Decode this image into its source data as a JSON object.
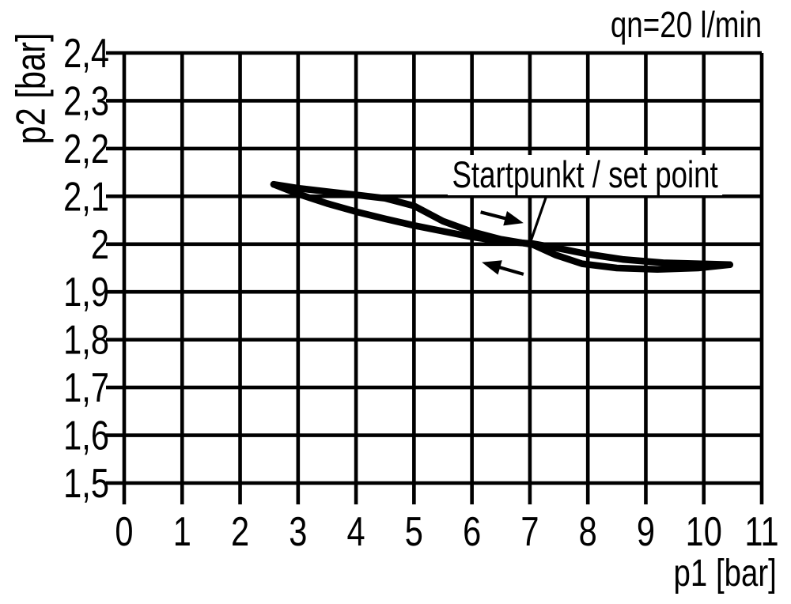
{
  "page": {
    "background_color": "#ffffff",
    "ink_color": "#000000"
  },
  "chart_data": {
    "type": "line",
    "annotation_top_right": "qn=20 l/min",
    "xlabel": "p1 [bar]",
    "ylabel": "p2 [bar]",
    "xlim": [
      0,
      11
    ],
    "ylim": [
      1.5,
      2.4
    ],
    "grid": true,
    "legend": "none",
    "x_ticks": {
      "values": [
        0,
        1,
        2,
        3,
        4,
        5,
        6,
        7,
        8,
        9,
        10,
        11
      ],
      "labels": [
        "0",
        "1",
        "2",
        "3",
        "4",
        "5",
        "6",
        "7",
        "8",
        "9",
        "10",
        "11"
      ]
    },
    "y_ticks": {
      "values": [
        2.4,
        2.3,
        2.2,
        2.1,
        2.0,
        1.9,
        1.8,
        1.7,
        1.6,
        1.5
      ],
      "labels": [
        "2,4",
        "2,3",
        "2,2",
        "2,1",
        "2",
        "1,9",
        "1,8",
        "1,7",
        "1,6",
        "1,5"
      ]
    },
    "series": [
      {
        "name": "hysteresis-branch-pressure-rising",
        "points": [
          [
            2.58,
            2.125
          ],
          [
            3.0,
            2.117
          ],
          [
            3.5,
            2.11
          ],
          [
            4.0,
            2.103
          ],
          [
            4.5,
            2.096
          ],
          [
            5.0,
            2.08
          ],
          [
            5.5,
            2.048
          ],
          [
            6.0,
            2.026
          ],
          [
            6.5,
            2.01
          ],
          [
            7.05,
            1.999
          ],
          [
            7.45,
            1.977
          ],
          [
            7.9,
            1.959
          ],
          [
            8.5,
            1.95
          ],
          [
            9.2,
            1.947
          ],
          [
            9.9,
            1.95
          ],
          [
            10.45,
            1.957
          ]
        ]
      },
      {
        "name": "hysteresis-branch-pressure-falling",
        "points": [
          [
            2.58,
            2.125
          ],
          [
            3.0,
            2.105
          ],
          [
            3.5,
            2.085
          ],
          [
            4.0,
            2.068
          ],
          [
            4.5,
            2.053
          ],
          [
            5.0,
            2.039
          ],
          [
            5.5,
            2.027
          ],
          [
            6.0,
            2.015
          ],
          [
            6.5,
            2.006
          ],
          [
            7.05,
            2.001
          ],
          [
            7.5,
            1.991
          ],
          [
            8.0,
            1.979
          ],
          [
            8.6,
            1.968
          ],
          [
            9.3,
            1.961
          ],
          [
            9.9,
            1.959
          ],
          [
            10.45,
            1.957
          ]
        ]
      }
    ],
    "set_point": {
      "label": "Startpunkt / set point",
      "p1": 7.05,
      "p2": 2.0,
      "callout_from": [
        7.32,
        2.113
      ],
      "callout_to": [
        7.0,
        2.001
      ]
    },
    "arrows": [
      {
        "name": "direction-arrow-right",
        "tail": [
          6.15,
          2.067
        ],
        "head": [
          6.89,
          2.044
        ]
      },
      {
        "name": "direction-arrow-left",
        "tail": [
          6.89,
          1.937
        ],
        "head": [
          6.17,
          1.962
        ]
      }
    ]
  }
}
